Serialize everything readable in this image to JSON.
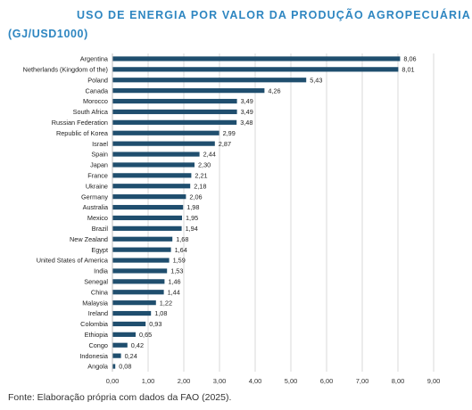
{
  "title": "USO DE ENERGIA POR VALOR DA PRODUÇÃO AGROPECUÁRIA",
  "subtitle": "(GJ/USD1000)",
  "source": "Fonte: Elaboração própria com dados da FAO (2025).",
  "colors": {
    "bar": "#1f4e6e",
    "title": "#2e86c1",
    "grid": "#d9d9d9"
  },
  "chart_data": {
    "type": "bar",
    "orientation": "horizontal",
    "title": "USO DE ENERGIA POR VALOR DA PRODUÇÃO AGROPECUÁRIA (GJ/USD1000)",
    "categories": [
      "Argentina",
      "Netherlands (Kingdom of the)",
      "Poland",
      "Canada",
      "Morocco",
      "South Africa",
      "Russian Federation",
      "Republic of Korea",
      "Israel",
      "Spain",
      "Japan",
      "France",
      "Ukraine",
      "Germany",
      "Australia",
      "Mexico",
      "Brazil",
      "New Zealand",
      "Egypt",
      "United States of America",
      "India",
      "Senegal",
      "China",
      "Malaysia",
      "Ireland",
      "Colombia",
      "Ethiopia",
      "Congo",
      "Indonesia",
      "Angola"
    ],
    "values": [
      8.06,
      8.01,
      5.43,
      4.26,
      3.49,
      3.49,
      3.48,
      2.99,
      2.87,
      2.44,
      2.3,
      2.21,
      2.18,
      2.06,
      1.98,
      1.95,
      1.94,
      1.68,
      1.64,
      1.59,
      1.53,
      1.46,
      1.44,
      1.22,
      1.08,
      0.93,
      0.65,
      0.42,
      0.24,
      0.08
    ],
    "value_labels": [
      "8,06",
      "8,01",
      "5,43",
      "4,26",
      "3,49",
      "3,49",
      "3,48",
      "2,99",
      "2,87",
      "2,44",
      "2,30",
      "2,21",
      "2,18",
      "2,06",
      "1,98",
      "1,95",
      "1,94",
      "1,68",
      "1,64",
      "1,59",
      "1,53",
      "1,46",
      "1,44",
      "1,22",
      "1,08",
      "0,93",
      "0,65",
      "0,42",
      "0,24",
      "0,08"
    ],
    "xlim": [
      0,
      9
    ],
    "ticks": [
      0,
      1,
      2,
      3,
      4,
      5,
      6,
      7,
      8,
      9
    ],
    "tick_labels": [
      "0,00",
      "1,00",
      "2,00",
      "3,00",
      "4,00",
      "5,00",
      "6,00",
      "7,00",
      "8,00",
      "9,00"
    ],
    "grid": true,
    "legend": false
  }
}
